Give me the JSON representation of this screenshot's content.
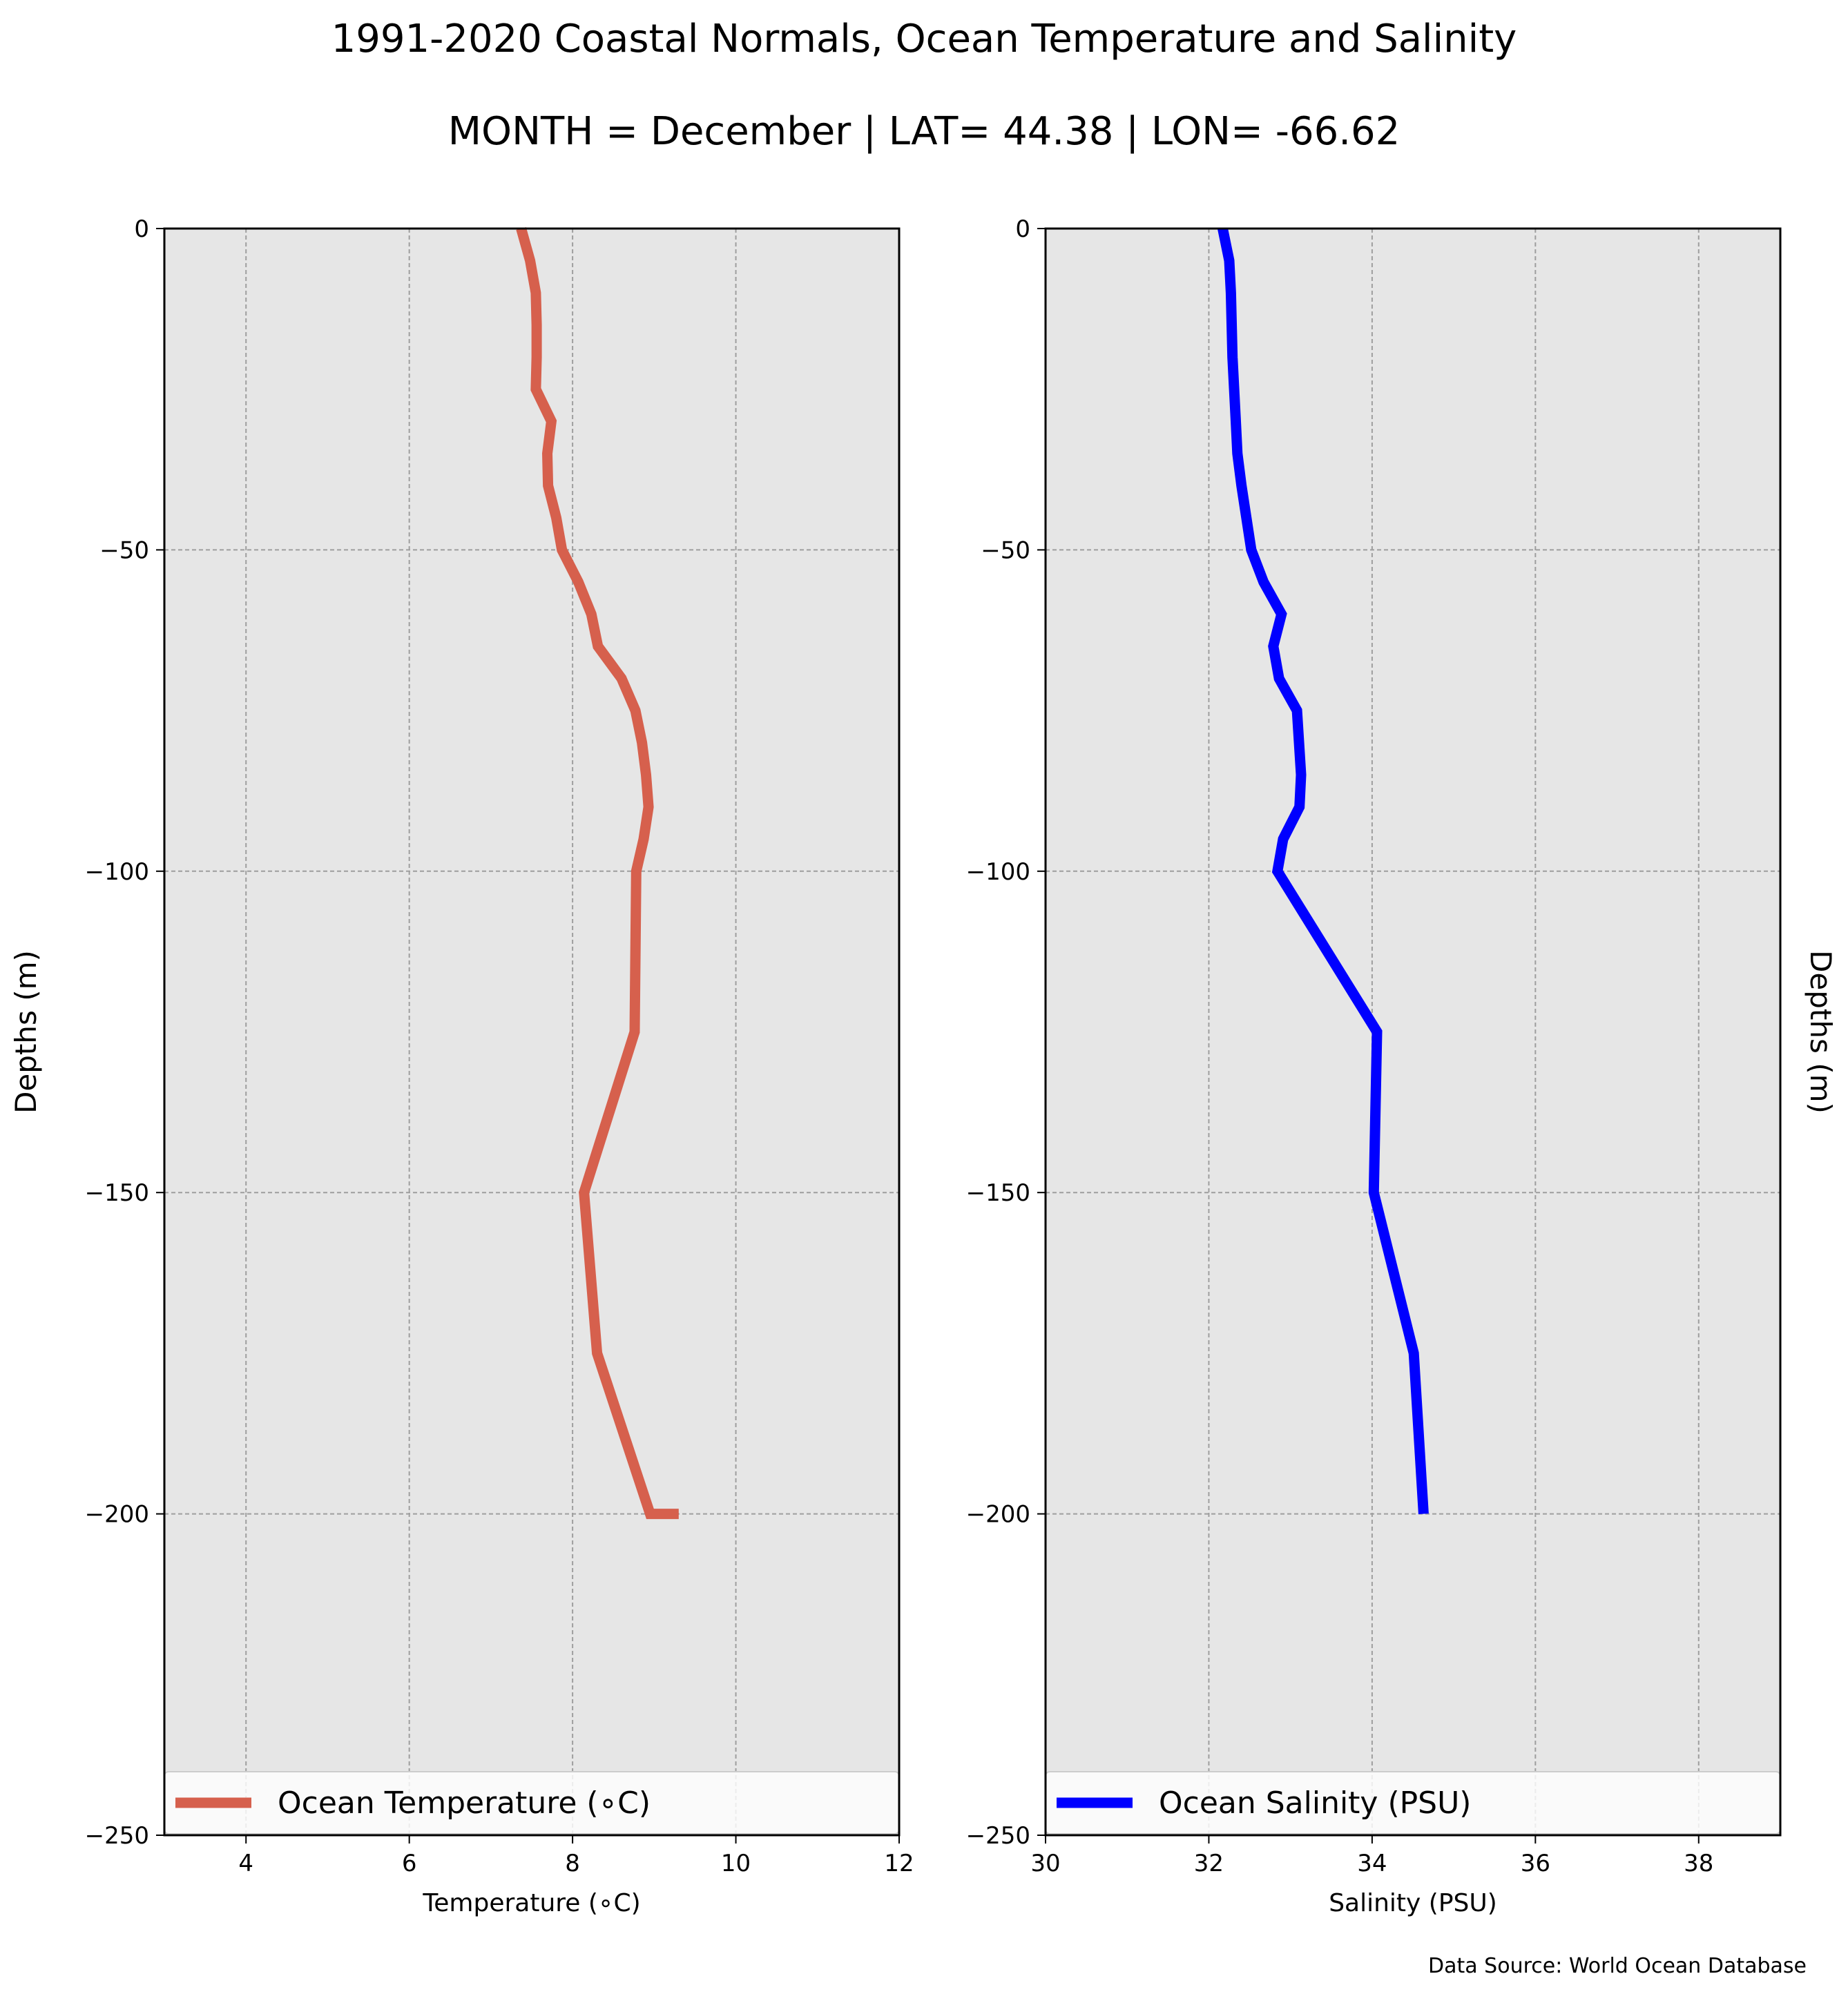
{
  "title": "1991-2020 Coastal Normals, Ocean Temperature and Salinity",
  "subtitle": "MONTH = December | LAT= 44.38 | LON= -66.62",
  "source_note": "Data Source: World Ocean Database",
  "colors": {
    "axes_bg": "#e6e6e6",
    "temperature": "#d6604d",
    "salinity": "#0000ff",
    "grid": "#9e9e9e"
  },
  "chart_data": [
    {
      "type": "line",
      "ylabel": "Depths (m)",
      "xlabel": "Temperature (∘C)",
      "xlim": [
        3,
        12
      ],
      "ylim": [
        -250,
        0
      ],
      "x_ticks": [
        4,
        6,
        8,
        10,
        12
      ],
      "y_ticks": [
        0,
        -50,
        -100,
        -150,
        -200,
        -250
      ],
      "grid": true,
      "legend": "lower-center",
      "series": [
        {
          "name": "Ocean Temperature (∘C)",
          "color": "#d6604d",
          "x": [
            7.37,
            7.48,
            7.55,
            7.56,
            7.56,
            7.55,
            7.74,
            7.69,
            7.7,
            7.8,
            7.87,
            8.07,
            8.23,
            8.31,
            8.6,
            8.77,
            8.85,
            8.9,
            8.93,
            8.87,
            8.78,
            8.76,
            8.14,
            8.3,
            8.95,
            9.3
          ],
          "y": [
            0,
            -5,
            -10,
            -15,
            -20,
            -25,
            -30,
            -35,
            -40,
            -45,
            -50,
            -55,
            -60,
            -65,
            -70,
            -75,
            -80,
            -85,
            -90,
            -95,
            -100,
            -125,
            -150,
            -175,
            -200,
            -200
          ]
        }
      ]
    },
    {
      "type": "line",
      "ylabel": "Depths (m)",
      "xlabel": "Salinity (PSU)",
      "xlim": [
        30,
        39
      ],
      "ylim": [
        -250,
        0
      ],
      "x_ticks": [
        30,
        32,
        34,
        36,
        38
      ],
      "y_ticks": [
        0,
        -50,
        -100,
        -150,
        -200,
        -250
      ],
      "grid": true,
      "legend": "lower-center",
      "series": [
        {
          "name": "Ocean Salinity (PSU)",
          "color": "#0000ff",
          "x": [
            32.17,
            32.25,
            32.27,
            32.29,
            32.31,
            32.33,
            32.35,
            32.4,
            32.46,
            32.52,
            32.67,
            32.89,
            32.79,
            32.86,
            33.08,
            33.13,
            33.11,
            32.91,
            32.84,
            34.06,
            34.02,
            34.51,
            34.63
          ],
          "y": [
            0,
            -5,
            -10,
            -20,
            -25,
            -30,
            -35,
            -40,
            -45,
            -50,
            -55,
            -60,
            -65,
            -70,
            -75,
            -85,
            -90,
            -95,
            -100,
            -125,
            -150,
            -175,
            -200
          ]
        }
      ]
    }
  ]
}
